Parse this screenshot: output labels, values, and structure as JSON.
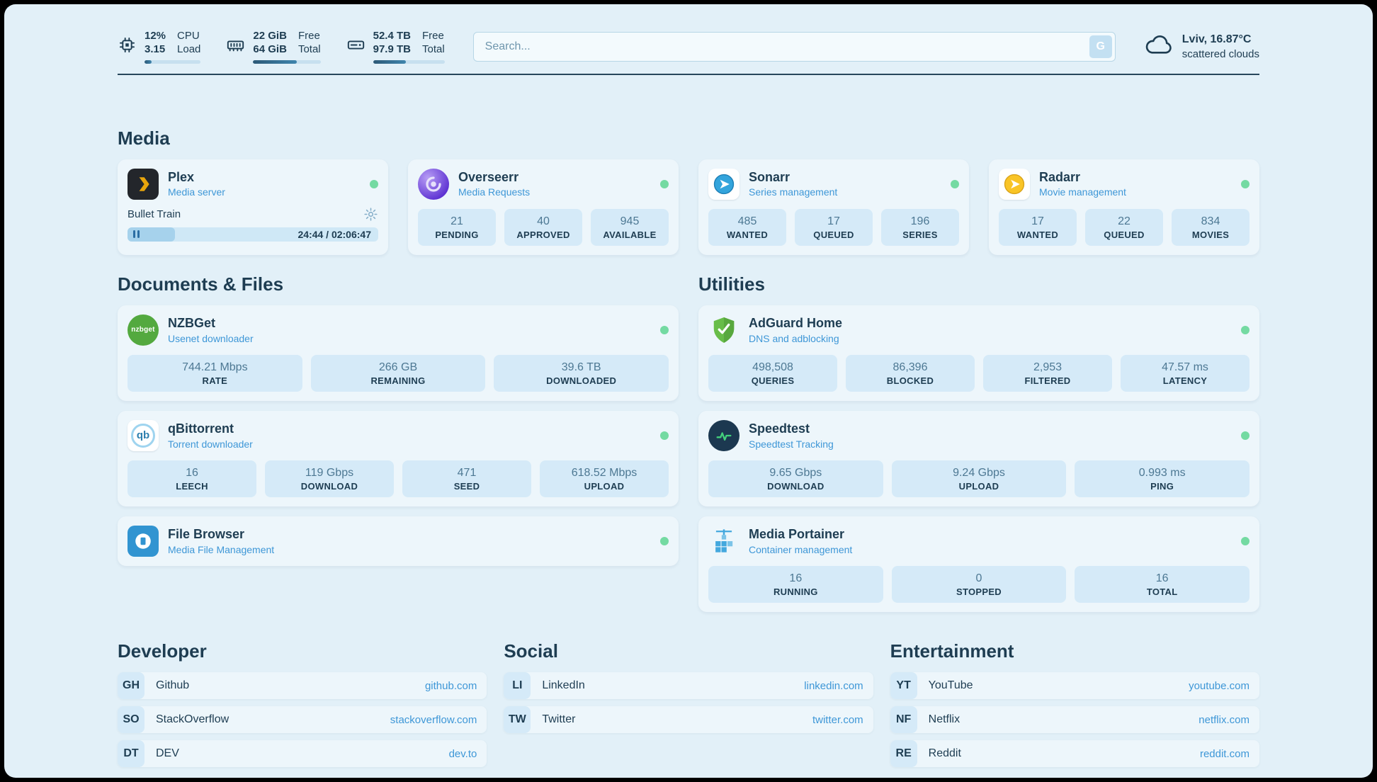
{
  "topbar": {
    "cpu": {
      "value": "12%",
      "load": "3.15",
      "label_top": "CPU",
      "label_bottom": "Load",
      "percent": 12
    },
    "ram": {
      "free": "22 GiB",
      "total": "64 GiB",
      "label_top": "Free",
      "label_bottom": "Total",
      "percent": 65
    },
    "disk": {
      "free": "52.4 TB",
      "total": "97.9 TB",
      "label_top": "Free",
      "label_bottom": "Total",
      "percent": 46
    },
    "search": {
      "placeholder": "Search...",
      "button_label": "G"
    },
    "weather": {
      "location": "Lviv, 16.87°C",
      "condition": "scattered clouds"
    }
  },
  "media": {
    "title": "Media",
    "plex": {
      "name": "Plex",
      "subtitle": "Media server",
      "status": "online",
      "now_playing": {
        "title": "Bullet Train",
        "time": "24:44 / 02:06:47",
        "progress_percent": 19
      }
    },
    "overseerr": {
      "name": "Overseerr",
      "subtitle": "Media Requests",
      "status": "online",
      "stats": [
        {
          "value": "21",
          "label": "PENDING"
        },
        {
          "value": "40",
          "label": "APPROVED"
        },
        {
          "value": "945",
          "label": "AVAILABLE"
        }
      ]
    },
    "sonarr": {
      "name": "Sonarr",
      "subtitle": "Series management",
      "status": "online",
      "stats": [
        {
          "value": "485",
          "label": "WANTED"
        },
        {
          "value": "17",
          "label": "QUEUED"
        },
        {
          "value": "196",
          "label": "SERIES"
        }
      ]
    },
    "radarr": {
      "name": "Radarr",
      "subtitle": "Movie management",
      "status": "online",
      "stats": [
        {
          "value": "17",
          "label": "WANTED"
        },
        {
          "value": "22",
          "label": "QUEUED"
        },
        {
          "value": "834",
          "label": "MOVIES"
        }
      ]
    }
  },
  "documents": {
    "title": "Documents & Files",
    "nzbget": {
      "name": "NZBGet",
      "subtitle": "Usenet downloader",
      "status": "online",
      "icon_text": "nzbget",
      "stats": [
        {
          "value": "744.21 Mbps",
          "label": "RATE"
        },
        {
          "value": "266 GB",
          "label": "REMAINING"
        },
        {
          "value": "39.6 TB",
          "label": "DOWNLOADED"
        }
      ]
    },
    "qbittorrent": {
      "name": "qBittorrent",
      "subtitle": "Torrent downloader",
      "status": "online",
      "icon_text": "qb",
      "stats": [
        {
          "value": "16",
          "label": "LEECH"
        },
        {
          "value": "119 Gbps",
          "label": "DOWNLOAD"
        },
        {
          "value": "471",
          "label": "SEED"
        },
        {
          "value": "618.52 Mbps",
          "label": "UPLOAD"
        }
      ]
    },
    "filebrowser": {
      "name": "File Browser",
      "subtitle": "Media File Management",
      "status": "online"
    }
  },
  "utilities": {
    "title": "Utilities",
    "adguard": {
      "name": "AdGuard Home",
      "subtitle": "DNS and adblocking",
      "status": "online",
      "stats": [
        {
          "value": "498,508",
          "label": "QUERIES"
        },
        {
          "value": "86,396",
          "label": "BLOCKED"
        },
        {
          "value": "2,953",
          "label": "FILTERED"
        },
        {
          "value": "47.57 ms",
          "label": "LATENCY"
        }
      ]
    },
    "speedtest": {
      "name": "Speedtest",
      "subtitle": "Speedtest Tracking",
      "status": "online",
      "stats": [
        {
          "value": "9.65 Gbps",
          "label": "DOWNLOAD"
        },
        {
          "value": "9.24 Gbps",
          "label": "UPLOAD"
        },
        {
          "value": "0.993 ms",
          "label": "PING"
        }
      ]
    },
    "portainer": {
      "name": "Media Portainer",
      "subtitle": "Container management",
      "status": "online",
      "stats": [
        {
          "value": "16",
          "label": "RUNNING"
        },
        {
          "value": "0",
          "label": "STOPPED"
        },
        {
          "value": "16",
          "label": "TOTAL"
        }
      ]
    }
  },
  "links": {
    "developer": {
      "title": "Developer",
      "items": [
        {
          "abbr": "GH",
          "name": "Github",
          "url": "github.com"
        },
        {
          "abbr": "SO",
          "name": "StackOverflow",
          "url": "stackoverflow.com"
        },
        {
          "abbr": "DT",
          "name": "DEV",
          "url": "dev.to"
        }
      ]
    },
    "social": {
      "title": "Social",
      "items": [
        {
          "abbr": "LI",
          "name": "LinkedIn",
          "url": "linkedin.com"
        },
        {
          "abbr": "TW",
          "name": "Twitter",
          "url": "twitter.com"
        }
      ]
    },
    "entertainment": {
      "title": "Entertainment",
      "items": [
        {
          "abbr": "YT",
          "name": "YouTube",
          "url": "youtube.com"
        },
        {
          "abbr": "NF",
          "name": "Netflix",
          "url": "netflix.com"
        },
        {
          "abbr": "RE",
          "name": "Reddit",
          "url": "reddit.com"
        }
      ]
    }
  },
  "colors": {
    "background": "#e2f0f8",
    "card": "#edf6fb",
    "tile": "#d5eaf8",
    "text": "#1e3d52",
    "accent_blue": "#3e97d7",
    "status_online": "#74daa2"
  },
  "icons": {
    "cpu": "chip",
    "ram": "memory-stick",
    "disk": "hard-drive",
    "weather": "cloud",
    "plex": "play-chevron",
    "overseerr": "swirl",
    "sonarr": "play-circle",
    "radarr": "play-circle",
    "nzbget": "text-logo",
    "qbittorrent": "text-logo",
    "filebrowser": "file-circle",
    "adguard": "shield-check",
    "speedtest": "pulse-line",
    "portainer": "container-crane",
    "settings": "gear",
    "playback": "pause",
    "status": "green-dot"
  }
}
